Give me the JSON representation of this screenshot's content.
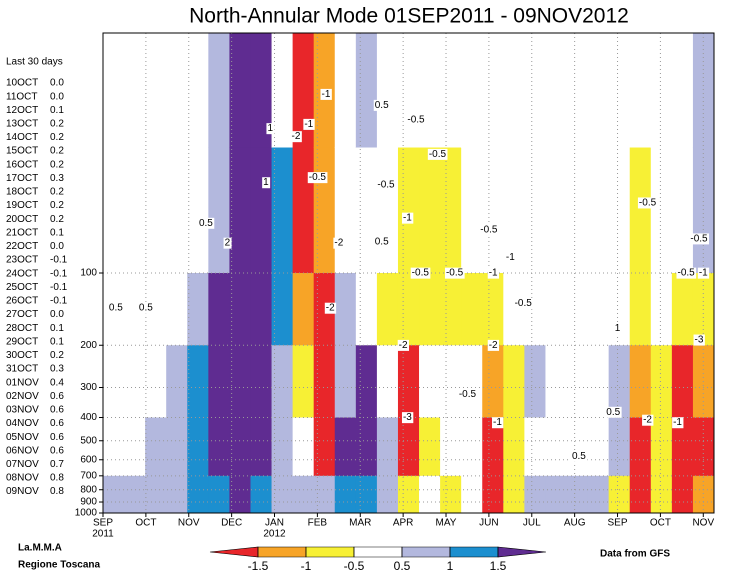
{
  "chart_data": {
    "type": "heatmap",
    "title": "North-Annular Mode 01SEP2011 - 09NOV2012",
    "categories": [
      "SEP",
      "OCT",
      "NOV",
      "DEC",
      "JAN",
      "FEB",
      "MAR",
      "APR",
      "MAY",
      "JUN",
      "JUL",
      "AUG",
      "SEP",
      "OCT",
      "NOV"
    ],
    "category_sublabels": [
      "2011",
      null,
      null,
      null,
      "2012",
      null,
      null,
      null,
      null,
      null,
      null,
      null,
      null,
      null,
      null
    ],
    "xlim": [
      0,
      14.25
    ],
    "ylim": [
      1000,
      10
    ],
    "log_scale": true,
    "grid": true,
    "yticks": [
      100,
      200,
      300,
      400,
      500,
      600,
      700,
      800,
      900,
      1000
    ],
    "levels": [
      -1.5,
      -1,
      -0.5,
      0.5,
      1,
      1.5
    ],
    "colors": [
      "#e8262a",
      "#f7a427",
      "#f7f035",
      "#ffffff",
      "#b3b8de",
      "#1c8fcf",
      "#5f2c91"
    ],
    "field": {
      "p_edges": [
        10,
        30,
        100,
        200,
        400,
        700,
        1000
      ],
      "values": [
        [
          0.2,
          0.2,
          0.3,
          0.3,
          0.3,
          0.6
        ],
        [
          0.2,
          0.2,
          0.3,
          0.3,
          0.4,
          0.7
        ],
        [
          0.3,
          0.3,
          0.4,
          0.4,
          0.6,
          0.7
        ],
        [
          0.2,
          0.3,
          0.4,
          0.6,
          0.8,
          0.9
        ],
        [
          0.3,
          0.4,
          0.7,
          1.2,
          1.2,
          1.1
        ],
        [
          0.6,
          0.9,
          1.6,
          1.7,
          1.6,
          1.2
        ],
        [
          1.8,
          1.8,
          1.8,
          1.8,
          1.7,
          1.6
        ],
        [
          1.7,
          1.7,
          1.6,
          1.6,
          1.6,
          1.2
        ],
        [
          0.3,
          1.2,
          1.1,
          0.8,
          0.8,
          0.6
        ],
        [
          -1.6,
          -1.6,
          -1.2,
          -0.6,
          0.3,
          0.6
        ],
        [
          -1.2,
          -1.2,
          -1.6,
          -1.6,
          -1.6,
          0.6
        ],
        [
          0.2,
          0.4,
          0.7,
          0.9,
          1.6,
          1.2
        ],
        [
          0.6,
          0.3,
          0.4,
          1.6,
          1.6,
          1.2
        ],
        [
          0.2,
          0.1,
          -0.6,
          -0.2,
          0.6,
          0.6
        ],
        [
          0.2,
          -0.6,
          -0.7,
          -1.6,
          -1.6,
          -0.8
        ],
        [
          0.1,
          -0.6,
          -0.6,
          -0.3,
          -0.6,
          0.2
        ],
        [
          0.2,
          -0.7,
          -0.6,
          0.1,
          0.2,
          -0.6
        ],
        [
          0.1,
          0.1,
          -0.6,
          -0.4,
          0.2,
          0.3
        ],
        [
          0.1,
          0.2,
          -0.7,
          -1.2,
          -1.6,
          -1.6
        ],
        [
          0.1,
          0.1,
          0.2,
          -0.6,
          -0.7,
          -0.6
        ],
        [
          0.1,
          0.1,
          0.2,
          0.6,
          0.3,
          0.6
        ],
        [
          0.1,
          0.1,
          0.1,
          0.2,
          0.3,
          0.6
        ],
        [
          0.1,
          0.1,
          0.1,
          0.2,
          0.3,
          0.7
        ],
        [
          0.1,
          0.1,
          0.2,
          0.2,
          0.4,
          0.6
        ],
        [
          0.1,
          0.1,
          0.2,
          0.6,
          0.6,
          -0.6
        ],
        [
          0.1,
          -0.6,
          -0.7,
          -1.2,
          -1.6,
          -1.6
        ],
        [
          0.1,
          0.1,
          0.2,
          -0.6,
          -0.6,
          -0.7
        ],
        [
          0.2,
          0.3,
          -0.7,
          -1.6,
          -1.6,
          -1.6
        ],
        [
          0.6,
          0.7,
          -0.6,
          -1.2,
          -1.6,
          -1.2
        ]
      ]
    },
    "contour_labels": [
      {
        "value": -1,
        "x": 5.2,
        "p": 18
      },
      {
        "value": -1,
        "x": 4.8,
        "p": 24
      },
      {
        "value": -2,
        "x": 4.5,
        "p": 27
      },
      {
        "value": -0.5,
        "x": 5.0,
        "p": 40
      },
      {
        "value": 0.5,
        "x": 6.5,
        "p": 20
      },
      {
        "value": -0.5,
        "x": 7.3,
        "p": 23
      },
      {
        "value": -0.5,
        "x": 7.8,
        "p": 32
      },
      {
        "value": -0.5,
        "x": 6.6,
        "p": 43
      },
      {
        "value": -1,
        "x": 7.1,
        "p": 59
      },
      {
        "value": 0.5,
        "x": 6.5,
        "p": 74
      },
      {
        "value": -0.5,
        "x": 7.4,
        "p": 100
      },
      {
        "value": -0.5,
        "x": 8.2,
        "p": 100
      },
      {
        "value": -0.5,
        "x": 9.0,
        "p": 66
      },
      {
        "value": -1,
        "x": 9.5,
        "p": 86
      },
      {
        "value": -1,
        "x": 9.1,
        "p": 100
      },
      {
        "value": -0.5,
        "x": 9.8,
        "p": 134
      },
      {
        "value": -0.5,
        "x": 12.7,
        "p": 51
      },
      {
        "value": -0.5,
        "x": 13.9,
        "p": 72
      },
      {
        "value": -0.5,
        "x": 13.6,
        "p": 100
      },
      {
        "value": -1,
        "x": 14.0,
        "p": 100
      },
      {
        "value": 0.5,
        "x": 0.3,
        "p": 140
      },
      {
        "value": 0.5,
        "x": 1.0,
        "p": 140
      },
      {
        "value": 0.5,
        "x": 2.4,
        "p": 62
      },
      {
        "value": 2,
        "x": 2.9,
        "p": 75
      },
      {
        "value": 1,
        "x": 3.8,
        "p": 42
      },
      {
        "value": 1,
        "x": 3.9,
        "p": 25
      },
      {
        "value": -2,
        "x": 5.3,
        "p": 140
      },
      {
        "value": -2,
        "x": 5.5,
        "p": 75
      },
      {
        "value": -2,
        "x": 9.1,
        "p": 200
      },
      {
        "value": -3,
        "x": 7.1,
        "p": 400
      },
      {
        "value": -2,
        "x": 7.0,
        "p": 200
      },
      {
        "value": -1,
        "x": 9.2,
        "p": 420
      },
      {
        "value": -1,
        "x": 13.4,
        "p": 420
      },
      {
        "value": -2,
        "x": 12.7,
        "p": 410
      },
      {
        "value": -3,
        "x": 13.9,
        "p": 190
      },
      {
        "value": 0.5,
        "x": 11.9,
        "p": 380
      },
      {
        "value": 0.5,
        "x": 11.1,
        "p": 580
      },
      {
        "value": 1,
        "x": 12.0,
        "p": 170
      },
      {
        "value": -0.5,
        "x": 8.5,
        "p": 320
      }
    ],
    "last30": {
      "title": "Last 30 days",
      "dates": [
        "10OCT",
        "11OCT",
        "12OCT",
        "13OCT",
        "14OCT",
        "15OCT",
        "16OCT",
        "17OCT",
        "18OCT",
        "19OCT",
        "20OCT",
        "21OCT",
        "22OCT",
        "23OCT",
        "24OCT",
        "25OCT",
        "26OCT",
        "27OCT",
        "28OCT",
        "29OCT",
        "30OCT",
        "31OCT",
        "01NOV",
        "02NOV",
        "03NOV",
        "04NOV",
        "05NOV",
        "06NOV",
        "07NOV",
        "08NOV",
        "09NOV"
      ],
      "values": [
        0,
        0,
        0.1,
        0.2,
        0.2,
        0.2,
        0.2,
        0.3,
        0.2,
        0.2,
        0.2,
        0.1,
        0,
        -0.1,
        -0.1,
        -0.1,
        -0.1,
        0,
        0.1,
        0.1,
        0.2,
        0.3,
        0.4,
        0.6,
        0.6,
        0.6,
        0.6,
        0.6,
        0.7,
        0.8,
        0.8
      ],
      "value_labels": [
        "0.0",
        "0.0",
        "0.1",
        "0.2",
        "0.2",
        "0.2",
        "0.2",
        "0.3",
        "0.2",
        "0.2",
        "0.2",
        "0.1",
        "0.0",
        "-0.1",
        "-0.1",
        "-0.1",
        "-0.1",
        "0.0",
        "0.1",
        "0.1",
        "0.2",
        "0.3",
        "0.4",
        "0.6",
        "0.6",
        "0.6",
        "0.6",
        "0.6",
        "0.7",
        "0.8",
        "0.8"
      ]
    },
    "credit_left": [
      "La.M.M.A",
      "Regione Toscana"
    ],
    "credit_right": "Data from GFS"
  }
}
